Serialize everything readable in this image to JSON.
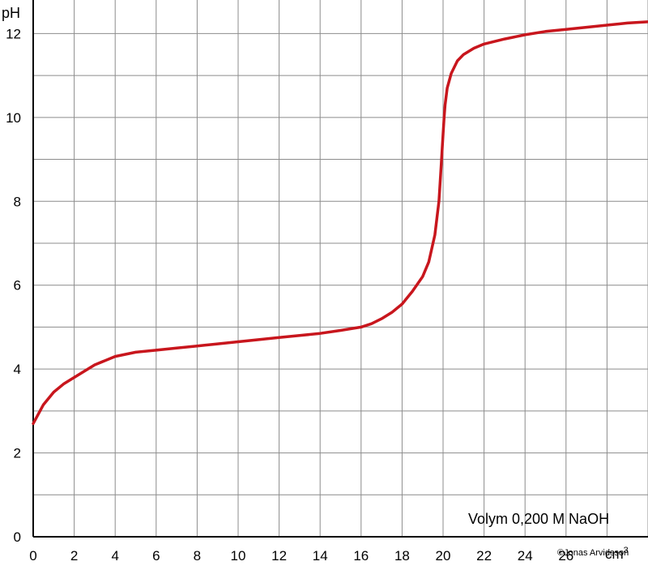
{
  "chart_data": {
    "type": "line",
    "ylabel": "pH",
    "xlabel_unit_base": "cm",
    "xlabel_unit_sup": "3",
    "annotation": "Volym 0,200 M NaOH",
    "copyright": "©Jonas Arvidsson",
    "xlim": [
      0,
      30
    ],
    "ylim": [
      0,
      12.8
    ],
    "x_ticks": [
      "0",
      "2",
      "4",
      "6",
      "8",
      "10",
      "12",
      "14",
      "16",
      "18",
      "20",
      "22",
      "24",
      "26"
    ],
    "y_ticks": [
      "0",
      "2",
      "4",
      "6",
      "8",
      "10",
      "12"
    ],
    "grid": true,
    "line_color": "#c8161d",
    "series": [
      {
        "x": [
          0,
          0.5,
          1,
          1.5,
          2,
          3,
          4,
          5,
          6,
          7,
          8,
          9,
          10,
          11,
          12,
          13,
          14,
          15,
          16,
          16.5,
          17,
          17.5,
          18,
          18.5,
          19,
          19.3,
          19.6,
          19.8,
          19.9,
          20,
          20.05,
          20.1,
          20.2,
          20.4,
          20.7,
          21,
          21.5,
          22,
          23,
          24,
          25,
          26,
          27,
          28,
          29,
          30
        ],
        "y": [
          2.7,
          3.15,
          3.45,
          3.65,
          3.8,
          4.1,
          4.3,
          4.4,
          4.45,
          4.5,
          4.55,
          4.6,
          4.65,
          4.7,
          4.75,
          4.8,
          4.85,
          4.92,
          5.0,
          5.08,
          5.2,
          5.35,
          5.55,
          5.85,
          6.2,
          6.55,
          7.2,
          8.0,
          8.8,
          9.6,
          10.0,
          10.3,
          10.7,
          11.05,
          11.35,
          11.5,
          11.65,
          11.75,
          11.87,
          11.97,
          12.05,
          12.1,
          12.15,
          12.2,
          12.25,
          12.28
        ]
      }
    ]
  }
}
